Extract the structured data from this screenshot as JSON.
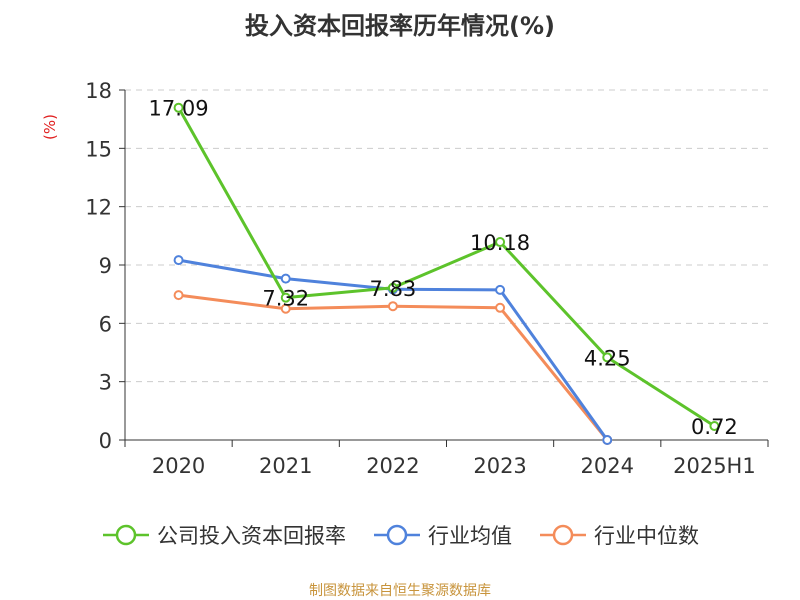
{
  "title": "投入资本回报率历年情况(%)",
  "unit_label": "(%)",
  "source": "制图数据来自恒生聚源数据库",
  "chart_data": {
    "type": "line",
    "title": "投入资本回报率历年情况(%)",
    "ylabel": "(%)",
    "xlabel": "",
    "categories": [
      "2020",
      "2021",
      "2022",
      "2023",
      "2024",
      "2025H1"
    ],
    "ylim": [
      0,
      18
    ],
    "yticks": [
      0,
      3,
      6,
      9,
      12,
      15,
      18
    ],
    "grid": true,
    "legend_position": "bottom",
    "series": [
      {
        "name": "公司投入资本回报率",
        "color": "#5dc32b",
        "values": [
          17.09,
          7.32,
          7.83,
          10.18,
          4.25,
          0.72
        ],
        "labels": [
          "17.09",
          "7.32",
          "7.83",
          "10.18",
          "4.25",
          "0.72"
        ]
      },
      {
        "name": "行业均值",
        "color": "#4f82dc",
        "values": [
          9.25,
          8.3,
          7.75,
          7.72,
          0.0,
          null
        ]
      },
      {
        "name": "行业中位数",
        "color": "#f48c5a",
        "values": [
          7.45,
          6.75,
          6.88,
          6.8,
          0.0,
          null
        ]
      }
    ]
  }
}
